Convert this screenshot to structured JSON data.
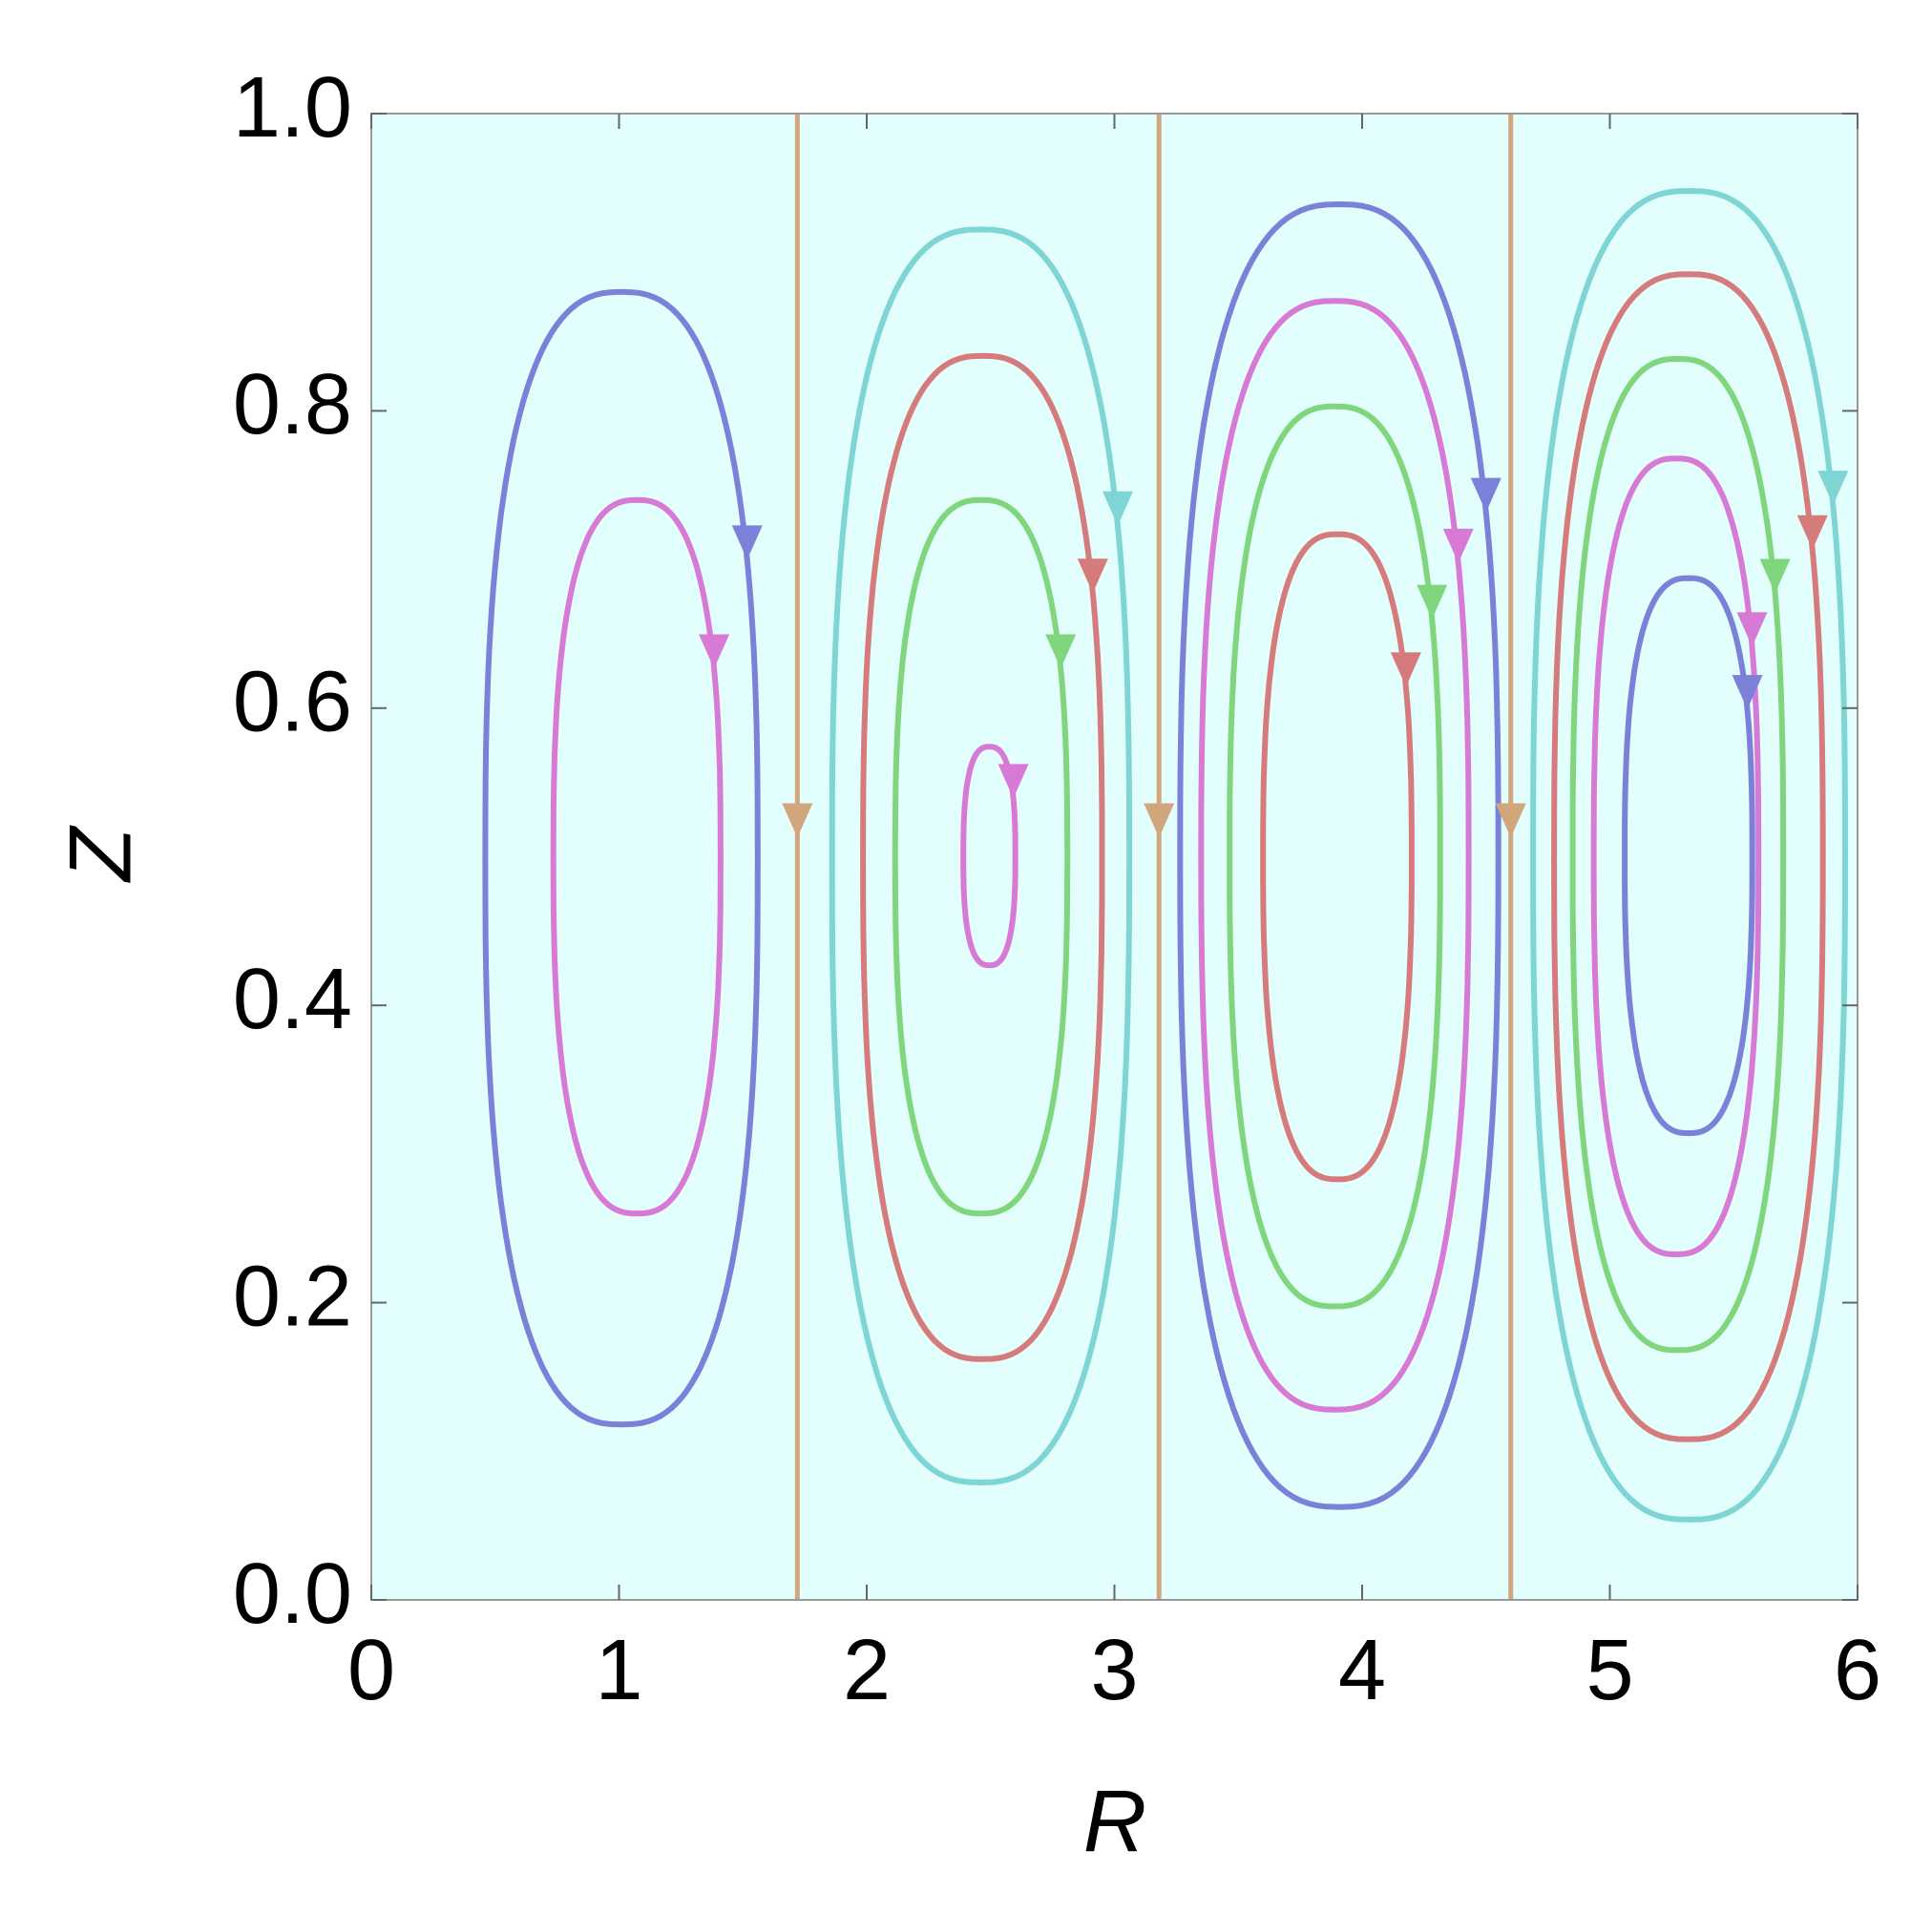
{
  "chart_data": {
    "type": "streamplot",
    "x_label": "R",
    "y_label": "Z",
    "xlim": [
      0,
      6
    ],
    "ylim": [
      0,
      1
    ],
    "xticks": [
      0,
      1,
      2,
      3,
      4,
      5,
      6
    ],
    "yticks": [
      {
        "value": 0,
        "label": "0.0"
      },
      0.2,
      0.4,
      0.6,
      0.8,
      {
        "value": 1,
        "label": "1.0"
      }
    ],
    "background": "#e2fefd",
    "separatrix_color": "#d2a67c",
    "separatrices": [
      1.72,
      3.18,
      4.6
    ],
    "streamlines": [
      {
        "color": "#7b80d8",
        "r": [
          0.46,
          1.56
        ],
        "z": [
          0.118,
          0.88
        ]
      },
      {
        "color": "#d77ad6",
        "r": [
          0.735,
          1.41
        ],
        "z": [
          0.26,
          0.74
        ]
      },
      {
        "color": "#7fd5d4",
        "r": [
          1.86,
          3.06
        ],
        "z": [
          0.079,
          0.922
        ]
      },
      {
        "color": "#d67b7b",
        "r": [
          1.985,
          2.95
        ],
        "z": [
          0.162,
          0.837
        ]
      },
      {
        "color": "#80d67c",
        "r": [
          2.115,
          2.81
        ],
        "z": [
          0.26,
          0.74
        ]
      },
      {
        "color": "#d77ad6",
        "r": [
          2.39,
          2.6
        ],
        "z": [
          0.427,
          0.574
        ]
      },
      {
        "color": "#7b80d8",
        "r": [
          3.265,
          4.55
        ],
        "z": [
          0.0625,
          0.939
        ]
      },
      {
        "color": "#d77ad6",
        "r": [
          3.35,
          4.43
        ],
        "z": [
          0.128,
          0.874
        ]
      },
      {
        "color": "#80d67c",
        "r": [
          3.465,
          4.315
        ],
        "z": [
          0.1975,
          0.803
        ]
      },
      {
        "color": "#d67b7b",
        "r": [
          3.6,
          4.2
        ],
        "z": [
          0.283,
          0.717
        ]
      },
      {
        "color": "#7fd5d4",
        "r": [
          4.69,
          5.95
        ],
        "z": [
          0.054,
          0.948
        ]
      },
      {
        "color": "#d67b7b",
        "r": [
          4.775,
          5.86
        ],
        "z": [
          0.108,
          0.892
        ]
      },
      {
        "color": "#80d67c",
        "r": [
          4.85,
          5.7
        ],
        "z": [
          0.168,
          0.835
        ]
      },
      {
        "color": "#d77ad6",
        "r": [
          4.935,
          5.6
        ],
        "z": [
          0.2325,
          0.768
        ]
      },
      {
        "color": "#7b80d8",
        "r": [
          5.06,
          5.575
        ],
        "z": [
          0.314,
          0.6875
        ]
      }
    ]
  }
}
